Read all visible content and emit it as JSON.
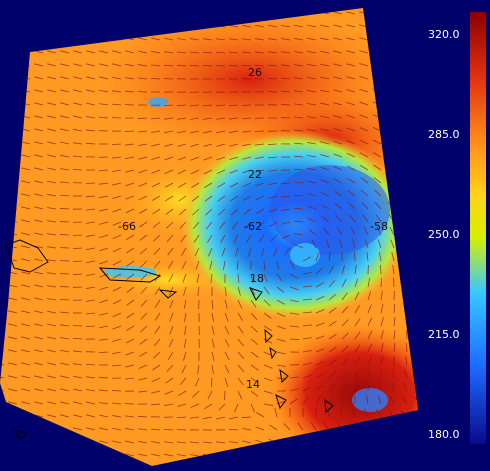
{
  "colorbar": {
    "ticks": [
      "320.0",
      "285.0",
      "250.0",
      "215.0",
      "180.0"
    ],
    "colors": [
      "#8b0000",
      "#e03010",
      "#ff8c1a",
      "#ffd21a",
      "#d8f000",
      "#36c8ff",
      "#1e6bff",
      "#0a0a8c"
    ]
  },
  "grid_labels": {
    "lat_top": "26",
    "lat_mid": "22",
    "lat_center": "18",
    "lat_bottom": "14",
    "lon_left": "-66",
    "lon_mid": "-62",
    "lon_right": "-58"
  },
  "colors": {
    "background": "#00006b",
    "wind_vectors": "#8a1010",
    "coastline": "#000000"
  }
}
